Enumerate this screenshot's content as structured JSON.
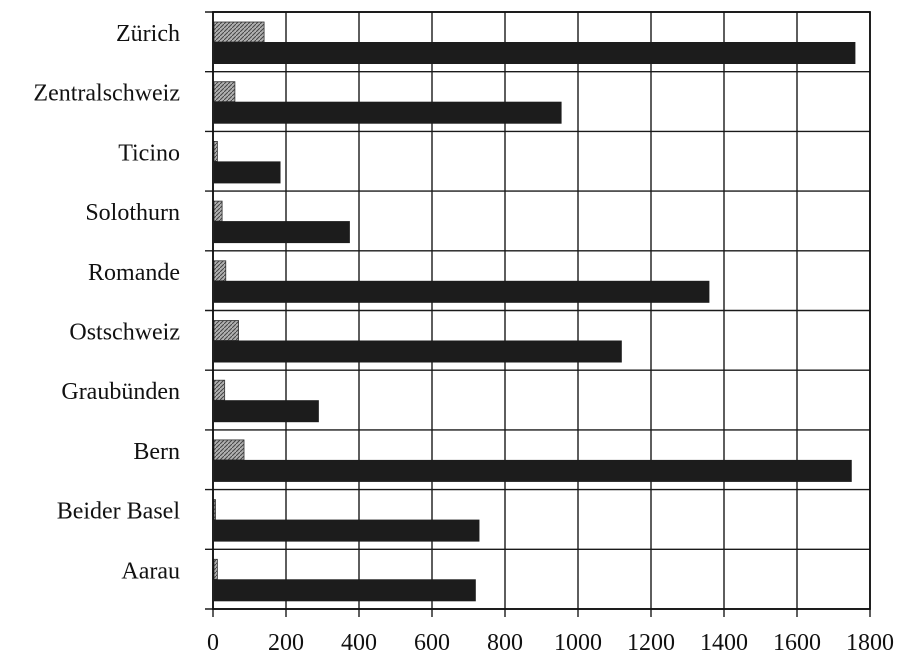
{
  "chart_data": {
    "type": "bar",
    "orientation": "horizontal",
    "title": "",
    "xlabel": "",
    "ylabel": "",
    "categories": [
      "Aarau",
      "Beider Basel",
      "Bern",
      "Graubünden",
      "Ostschweiz",
      "Romande",
      "Solothurn",
      "Ticino",
      "Zentralschweiz",
      "Zürich"
    ],
    "series": [
      {
        "color": "#1c1c1c",
        "values": [
          720,
          730,
          1750,
          290,
          1120,
          1360,
          375,
          185,
          955,
          1760
        ]
      },
      {
        "color": "#8a8a8a",
        "values": [
          12,
          5,
          85,
          32,
          70,
          35,
          25,
          12,
          60,
          140
        ]
      }
    ],
    "xlim": [
      0,
      1800
    ],
    "xticks": [
      0,
      200,
      400,
      600,
      800,
      1000,
      1200,
      1400,
      1600,
      1800
    ],
    "grid": true,
    "legend": "none"
  }
}
